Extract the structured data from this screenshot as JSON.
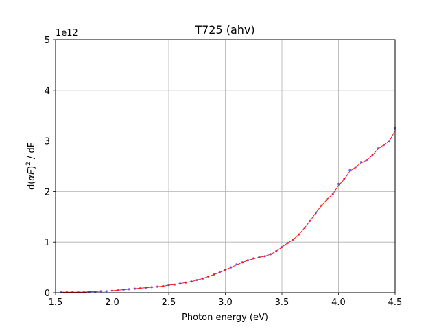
{
  "chart_data": {
    "type": "scatter",
    "title": "T725 (ahv)",
    "xlabel": "Photon energy (eV)",
    "ylabel_prefix": "d(",
    "ylabel_alpha": "α",
    "ylabel_E": "E",
    "ylabel_close": ")",
    "ylabel_sup": "2",
    "ylabel_suffix": " / dE",
    "y_offset_text": "1e12",
    "xlim": [
      1.5,
      4.5
    ],
    "ylim": [
      0,
      5
    ],
    "y_scale_note": "y values in units of 1e12",
    "grid": true,
    "xticks": [
      "1.5",
      "2.0",
      "2.5",
      "3.0",
      "3.5",
      "4.0",
      "4.5"
    ],
    "yticks": [
      "0",
      "1",
      "2",
      "3",
      "4",
      "5"
    ],
    "series": [
      {
        "kind": "scatter",
        "color": "#3a3aff",
        "x": [
          1.55,
          1.6,
          1.65,
          1.7,
          1.75,
          1.8,
          1.85,
          1.9,
          1.95,
          2.0,
          2.05,
          2.1,
          2.15,
          2.2,
          2.25,
          2.3,
          2.35,
          2.4,
          2.45,
          2.5,
          2.55,
          2.6,
          2.65,
          2.7,
          2.75,
          2.8,
          2.85,
          2.9,
          2.95,
          3.0,
          3.05,
          3.1,
          3.15,
          3.2,
          3.25,
          3.3,
          3.35,
          3.4,
          3.45,
          3.5,
          3.55,
          3.6,
          3.65,
          3.7,
          3.75,
          3.8,
          3.85,
          3.9,
          3.95,
          4.0,
          4.05,
          4.1,
          4.15,
          4.2,
          4.25,
          4.3,
          4.35,
          4.4,
          4.45,
          4.5
        ],
        "y": [
          0.01,
          0.01,
          0.01,
          0.01,
          0.01,
          0.02,
          0.02,
          0.03,
          0.03,
          0.04,
          0.05,
          0.06,
          0.07,
          0.08,
          0.09,
          0.1,
          0.11,
          0.12,
          0.13,
          0.15,
          0.16,
          0.18,
          0.2,
          0.22,
          0.25,
          0.28,
          0.32,
          0.36,
          0.4,
          0.45,
          0.5,
          0.56,
          0.6,
          0.64,
          0.68,
          0.7,
          0.72,
          0.76,
          0.82,
          0.9,
          0.98,
          1.05,
          1.15,
          1.28,
          1.42,
          1.58,
          1.72,
          1.85,
          1.95,
          2.15,
          2.25,
          2.42,
          2.48,
          2.58,
          2.62,
          2.72,
          2.85,
          2.92,
          3.0,
          3.25
        ]
      },
      {
        "kind": "line",
        "color": "#ff0000",
        "x": [
          1.55,
          1.6,
          1.65,
          1.7,
          1.75,
          1.8,
          1.85,
          1.9,
          1.95,
          2.0,
          2.05,
          2.1,
          2.15,
          2.2,
          2.25,
          2.3,
          2.35,
          2.4,
          2.45,
          2.5,
          2.55,
          2.6,
          2.65,
          2.7,
          2.75,
          2.8,
          2.85,
          2.9,
          2.95,
          3.0,
          3.05,
          3.1,
          3.15,
          3.2,
          3.25,
          3.3,
          3.35,
          3.4,
          3.45,
          3.5,
          3.55,
          3.6,
          3.65,
          3.7,
          3.75,
          3.8,
          3.85,
          3.9,
          3.95,
          4.0,
          4.05,
          4.1,
          4.15,
          4.2,
          4.25,
          4.3,
          4.35,
          4.4,
          4.45,
          4.5
        ],
        "y": [
          0.01,
          0.01,
          0.01,
          0.01,
          0.01,
          0.02,
          0.02,
          0.03,
          0.03,
          0.04,
          0.05,
          0.06,
          0.07,
          0.08,
          0.09,
          0.1,
          0.11,
          0.12,
          0.13,
          0.15,
          0.16,
          0.18,
          0.2,
          0.22,
          0.25,
          0.28,
          0.32,
          0.36,
          0.4,
          0.45,
          0.5,
          0.55,
          0.6,
          0.64,
          0.67,
          0.7,
          0.72,
          0.76,
          0.82,
          0.9,
          0.98,
          1.05,
          1.15,
          1.28,
          1.42,
          1.58,
          1.72,
          1.85,
          1.95,
          2.12,
          2.24,
          2.4,
          2.48,
          2.56,
          2.62,
          2.72,
          2.84,
          2.92,
          3.0,
          3.2
        ]
      }
    ]
  }
}
